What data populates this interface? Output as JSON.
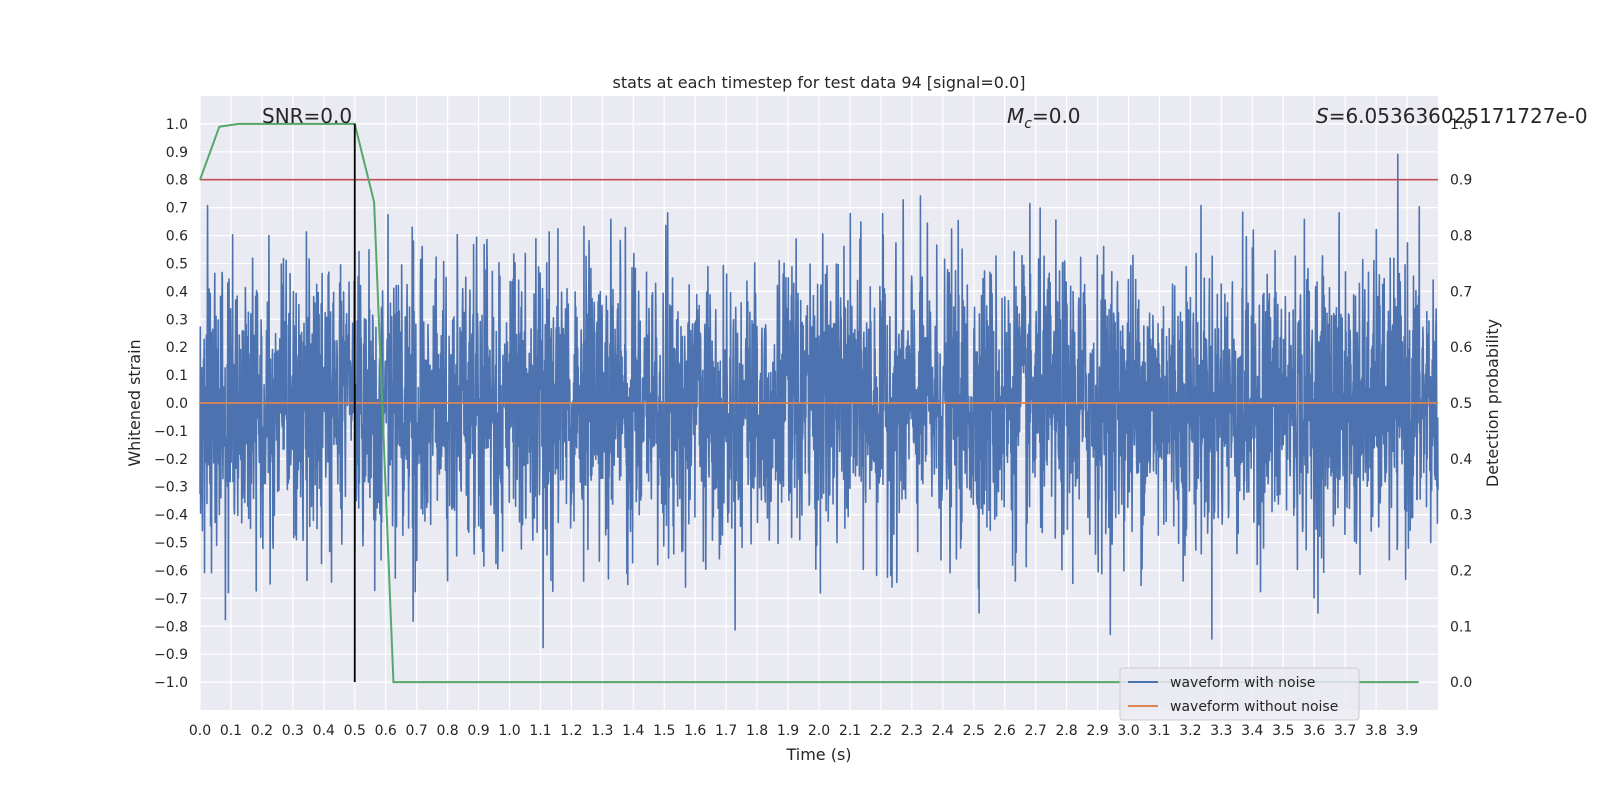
{
  "chart_data": {
    "type": "line",
    "title": "stats at each timestep for test data 94 [signal=0.0]",
    "xlabel": "Time (s)",
    "ylabel": "Whitened strain",
    "ylabel_right": "Detection probability",
    "xlim": [
      0.0,
      4.0
    ],
    "ylim": [
      -1.1,
      1.1
    ],
    "ylim_right": [
      -0.05,
      1.05
    ],
    "x_ticks": [
      0.0,
      0.1,
      0.2,
      0.3,
      0.4,
      0.5,
      0.6,
      0.7,
      0.8,
      0.9,
      1.0,
      1.1,
      1.2,
      1.3,
      1.4,
      1.5,
      1.6,
      1.7,
      1.8,
      1.9,
      2.0,
      2.1,
      2.2,
      2.3,
      2.4,
      2.5,
      2.6,
      2.7,
      2.8,
      2.9,
      3.0,
      3.1,
      3.2,
      3.3,
      3.4,
      3.5,
      3.6,
      3.7,
      3.8,
      3.9
    ],
    "y_ticks": [
      1.0,
      0.9,
      0.8,
      0.7,
      0.6,
      0.5,
      0.4,
      0.3,
      0.2,
      0.1,
      0.0,
      -0.1,
      -0.2,
      -0.3,
      -0.4,
      -0.5,
      -0.6,
      -0.7,
      -0.8,
      -0.9,
      -1.0
    ],
    "y_ticks_right": [
      1.0,
      0.9,
      0.8,
      0.7,
      0.6,
      0.5,
      0.4,
      0.3,
      0.2,
      0.1,
      0.0
    ],
    "grid": true,
    "legend_position": "lower-right",
    "annotations": {
      "snr": "SNR=0.0",
      "mc": "M<sub>c</sub>=0.0",
      "s_prefix": "S",
      "s_value": "=6.053636025171727e-0"
    },
    "threshold_right": 0.9,
    "marker_x": 0.5,
    "noise_amplitude": 0.25,
    "series": [
      {
        "name": "waveform with noise",
        "color": "#4c72b0"
      },
      {
        "name": "waveform without noise",
        "color": "#dd8452",
        "constant": 0.0
      },
      {
        "name": "",
        "axis": "right",
        "color": "#55a868",
        "x": [
          0.0,
          0.0625,
          0.125,
          0.1875,
          0.25,
          0.3125,
          0.375,
          0.4375,
          0.5,
          0.5625,
          0.625,
          0.6875,
          0.75,
          0.8125,
          0.875,
          0.9375,
          1.0,
          1.5,
          2.0,
          2.5,
          3.0,
          3.5,
          3.9375
        ],
        "values": [
          0.9,
          0.995,
          1.0,
          1.0,
          1.0,
          1.0,
          1.0,
          1.0,
          1.0,
          0.86,
          0.0,
          0.0,
          0.0,
          0.0,
          0.0,
          0.0,
          0.0,
          0.0,
          0.0,
          0.0,
          0.0,
          0.0,
          0.0
        ]
      }
    ],
    "colors": {
      "background": "#eaeaf2",
      "grid": "#ffffff",
      "threshold": "#c44e52",
      "marker": "#000000"
    }
  }
}
